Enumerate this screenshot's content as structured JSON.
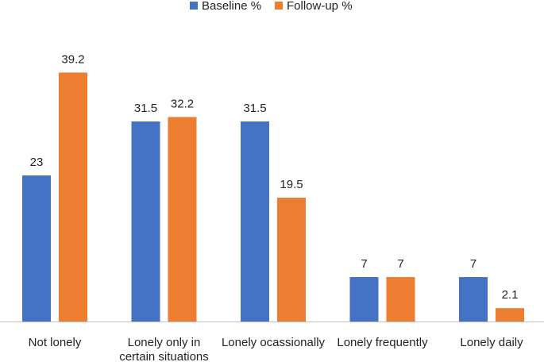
{
  "chart_data": {
    "type": "bar",
    "title": "",
    "xlabel": "",
    "ylabel": "",
    "ylim": [
      0,
      40
    ],
    "grid": false,
    "legend_position": "top-center",
    "categories": [
      [
        "Not lonely"
      ],
      [
        "Lonely only in",
        "certain situations"
      ],
      [
        "Lonely ocassionally"
      ],
      [
        "Lonely frequently"
      ],
      [
        "Lonely daily"
      ]
    ],
    "series": [
      {
        "name": "Baseline %",
        "color": "#4472C4",
        "values": [
          23,
          31.5,
          31.5,
          7,
          7
        ],
        "labels": [
          "23",
          "31.5",
          "31.5",
          "7",
          "7"
        ]
      },
      {
        "name": "Follow-up %",
        "color": "#ED7D31",
        "values": [
          39.2,
          32.2,
          19.5,
          7,
          2.1
        ],
        "labels": [
          "39.2",
          "32.2",
          "19.5",
          "7",
          "2.1"
        ]
      }
    ]
  }
}
